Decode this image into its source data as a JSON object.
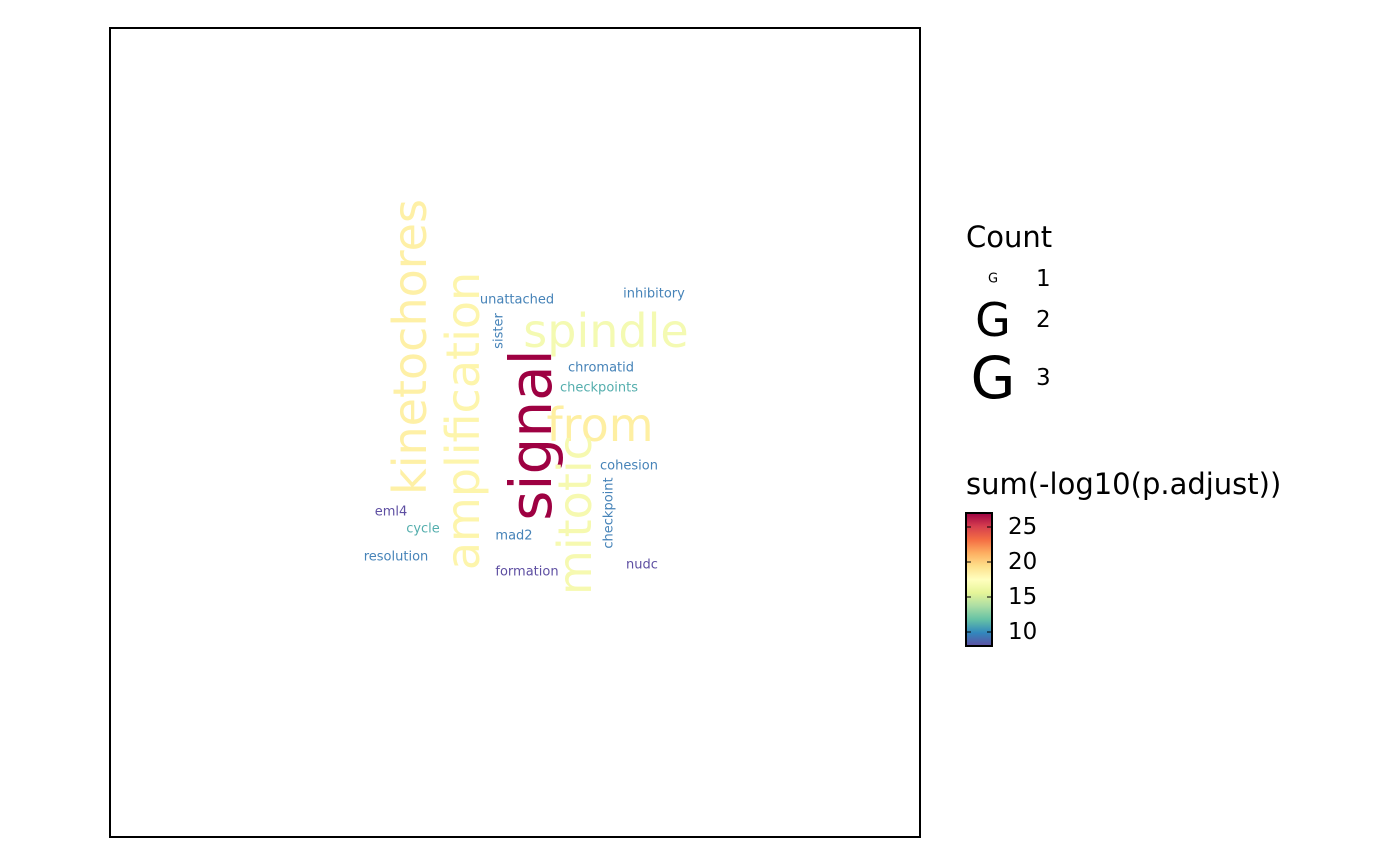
{
  "chart_data": {
    "type": "wordcloud",
    "words": [
      {
        "text": "signal",
        "count": 3,
        "score": 26.5,
        "color": "#9E0142",
        "vertical": true
      },
      {
        "text": "kinetochores",
        "count": 2,
        "score": 17.0,
        "color": "#FEF0A6",
        "vertical": true
      },
      {
        "text": "amplification",
        "count": 2,
        "score": 16.8,
        "color": "#FDF5AC",
        "vertical": true
      },
      {
        "text": "spindle",
        "count": 2,
        "score": 15.5,
        "color": "#F4FAB2",
        "vertical": false
      },
      {
        "text": "from",
        "count": 2,
        "score": 17.2,
        "color": "#FEEFA2",
        "vertical": false
      },
      {
        "text": "mitotic",
        "count": 2,
        "score": 15.8,
        "color": "#F6F9B0",
        "vertical": true
      },
      {
        "text": "unattached",
        "count": 1,
        "score": 10.3,
        "color": "#4683B8",
        "vertical": false
      },
      {
        "text": "inhibitory",
        "count": 1,
        "score": 10.3,
        "color": "#4683B8",
        "vertical": false
      },
      {
        "text": "sister",
        "count": 1,
        "score": 10.3,
        "color": "#4683B8",
        "vertical": true
      },
      {
        "text": "chromatid",
        "count": 1,
        "score": 10.3,
        "color": "#4683B8",
        "vertical": false
      },
      {
        "text": "checkpoints",
        "count": 1,
        "score": 11.5,
        "color": "#54AEAD",
        "vertical": false
      },
      {
        "text": "cohesion",
        "count": 1,
        "score": 10.3,
        "color": "#4683B8",
        "vertical": false
      },
      {
        "text": "checkpoint",
        "count": 1,
        "score": 10.3,
        "color": "#4683B8",
        "vertical": true
      },
      {
        "text": "eml4",
        "count": 1,
        "score": 9.0,
        "color": "#5E4FA2",
        "vertical": false
      },
      {
        "text": "cycle",
        "count": 1,
        "score": 11.5,
        "color": "#54AEAD",
        "vertical": false
      },
      {
        "text": "mad2",
        "count": 1,
        "score": 10.3,
        "color": "#4683B8",
        "vertical": false
      },
      {
        "text": "resolution",
        "count": 1,
        "score": 10.3,
        "color": "#4683B8",
        "vertical": false
      },
      {
        "text": "formation",
        "count": 1,
        "score": 9.0,
        "color": "#5E4FA2",
        "vertical": false
      },
      {
        "text": "nudc",
        "count": 1,
        "score": 9.0,
        "color": "#5E4FA2",
        "vertical": false
      }
    ],
    "legend_size": {
      "title": "Count",
      "glyph": "G",
      "entries": [
        {
          "label": "1",
          "count": 1
        },
        {
          "label": "2",
          "count": 2
        },
        {
          "label": "3",
          "count": 3
        }
      ]
    },
    "legend_color": {
      "title": "sum(-log10(p.adjust))",
      "range": [
        8,
        27
      ],
      "ticks": [
        {
          "label": "10",
          "value": 10
        },
        {
          "label": "15",
          "value": 15
        },
        {
          "label": "20",
          "value": 20
        },
        {
          "label": "25",
          "value": 25
        }
      ],
      "palette": [
        "#5E4FA2",
        "#3288BD",
        "#66C2A5",
        "#ABDDA4",
        "#E6F598",
        "#FFFFBF",
        "#FEE08B",
        "#FDAE61",
        "#F46D43",
        "#D53E4F",
        "#9E0142"
      ]
    },
    "grid": false,
    "legend_position": "right"
  }
}
